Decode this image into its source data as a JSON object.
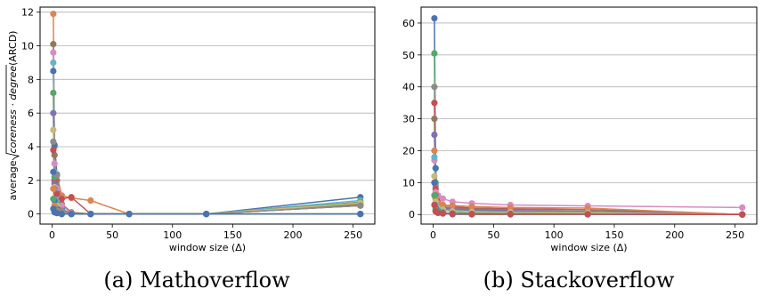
{
  "captions": {
    "left": "(a) Mathoverflow",
    "right": "(b) Stackoverflow"
  },
  "chart_data": [
    {
      "type": "line",
      "title": "",
      "xlabel": "window size (Δ)",
      "ylabel_prefix": "average ",
      "ylabel_radicand": "coreness · degree",
      "ylabel_suffix": " (ARCD)",
      "xlim": [
        -10,
        268
      ],
      "ylim": [
        -0.6,
        12.3
      ],
      "xticks": [
        0,
        50,
        100,
        150,
        200,
        250
      ],
      "yticks": [
        0,
        2,
        4,
        6,
        8,
        10,
        12
      ],
      "grid": "horizontal",
      "x": [
        1,
        2,
        4,
        8,
        16,
        32,
        64,
        128,
        256
      ],
      "series": [
        {
          "color": "#dd8452",
          "values": [
            11.9,
            4.0,
            2.3,
            1.1,
            0.95,
            0.8,
            0.0,
            0.0,
            0.55
          ]
        },
        {
          "color": "#4c72b0",
          "values": [
            8.5,
            4.1,
            2.35,
            0.3,
            0.0,
            0.0,
            0.0,
            0.0,
            1.0
          ]
        },
        {
          "color": "#937860",
          "values": [
            10.1,
            3.5,
            2.0,
            0.6,
            0.1,
            0.0,
            0.0,
            0.0,
            0.6
          ]
        },
        {
          "color": "#da8bc3",
          "values": [
            9.6,
            3.0,
            1.5,
            0.5,
            0.05,
            0.0,
            0.0,
            0.0,
            0.7
          ]
        },
        {
          "color": "#64b5cd",
          "values": [
            9.0,
            2.5,
            1.0,
            0.2,
            0.0,
            0.0,
            0.0,
            0.0,
            0.8
          ]
        },
        {
          "color": "#c44e52",
          "values": [
            3.8,
            2.0,
            1.2,
            0.9,
            1.0,
            0.0,
            0.0,
            0.0,
            0.5
          ]
        },
        {
          "color": "#55a868",
          "values": [
            7.2,
            2.2,
            0.6,
            0.1,
            0.0,
            0.0,
            0.0,
            0.0,
            0.7
          ]
        },
        {
          "color": "#8172b3",
          "values": [
            6.0,
            1.8,
            0.4,
            0.05,
            0.0,
            0.0,
            0.0,
            0.0,
            0.5
          ]
        },
        {
          "color": "#ccb974",
          "values": [
            5.0,
            1.6,
            0.5,
            0.1,
            0.0,
            0.0,
            0.0,
            0.0,
            0.65
          ]
        },
        {
          "color": "#8c8c8c",
          "values": [
            4.3,
            1.5,
            2.3,
            0.2,
            0.0,
            0.0,
            0.0,
            0.0,
            0.5
          ]
        },
        {
          "color": "#4c72b0",
          "values": [
            2.5,
            0.8,
            0.3,
            0.0,
            0.0,
            0.0,
            0.0,
            0.0,
            0.0
          ]
        },
        {
          "color": "#dd8452",
          "values": [
            1.5,
            0.5,
            0.2,
            0.0,
            0.0,
            0.0,
            0.0,
            0.0,
            0.0
          ]
        },
        {
          "color": "#55a868",
          "values": [
            0.9,
            0.3,
            0.1,
            0.0,
            0.0,
            0.0,
            0.0,
            0.0,
            0.0
          ]
        },
        {
          "color": "#4c72b0",
          "values": [
            0.3,
            0.1,
            0.05,
            0.0,
            0.0,
            0.0,
            0.0,
            0.0,
            0.0
          ]
        }
      ]
    },
    {
      "type": "line",
      "title": "",
      "xlabel": "window size (Δ)",
      "ylabel": "",
      "xlim": [
        -10,
        268
      ],
      "ylim": [
        -3,
        65
      ],
      "xticks": [
        0,
        50,
        100,
        150,
        200,
        250
      ],
      "yticks": [
        0,
        10,
        20,
        30,
        40,
        50,
        60
      ],
      "grid": "horizontal",
      "x": [
        1,
        2,
        4,
        8,
        16,
        32,
        64,
        128,
        256
      ],
      "series": [
        {
          "color": "#4c72b0",
          "values": [
            61.5,
            14.5,
            5.0,
            2.0,
            1.0,
            0.8,
            0.6,
            0.5,
            0.0
          ]
        },
        {
          "color": "#55a868",
          "values": [
            50.5,
            10.0,
            4.0,
            1.5,
            0.8,
            0.6,
            0.5,
            0.4,
            0.0
          ]
        },
        {
          "color": "#8c8c8c",
          "values": [
            40.0,
            9.0,
            3.5,
            2.0,
            1.5,
            1.2,
            1.0,
            0.8,
            0.0
          ]
        },
        {
          "color": "#c44e52",
          "values": [
            35.0,
            8.0,
            4.5,
            3.0,
            2.5,
            2.0,
            1.8,
            1.5,
            0.0
          ]
        },
        {
          "color": "#da8bc3",
          "values": [
            17.0,
            7.0,
            6.0,
            5.0,
            4.0,
            3.5,
            3.0,
            2.7,
            2.2
          ]
        },
        {
          "color": "#937860",
          "values": [
            30.0,
            6.0,
            3.0,
            2.5,
            2.0,
            1.8,
            1.6,
            1.5,
            0.0
          ]
        },
        {
          "color": "#8172b3",
          "values": [
            25.0,
            5.0,
            3.0,
            2.0,
            1.8,
            1.5,
            1.2,
            1.0,
            0.0
          ]
        },
        {
          "color": "#dd8452",
          "values": [
            20.0,
            5.0,
            3.5,
            3.0,
            2.8,
            2.5,
            2.2,
            2.0,
            0.0
          ]
        },
        {
          "color": "#ccb974",
          "values": [
            12.0,
            4.0,
            2.0,
            1.5,
            1.0,
            0.8,
            0.7,
            0.6,
            0.0
          ]
        },
        {
          "color": "#64b5cd",
          "values": [
            18.0,
            3.0,
            1.5,
            0.8,
            0.0,
            0.0,
            0.0,
            0.0,
            0.0
          ]
        },
        {
          "color": "#4c72b0",
          "values": [
            10.0,
            2.0,
            1.0,
            0.5,
            0.3,
            0.2,
            0.2,
            0.1,
            0.0
          ]
        },
        {
          "color": "#55a868",
          "values": [
            6.0,
            1.5,
            0.8,
            0.4,
            0.2,
            0.1,
            0.1,
            0.1,
            0.0
          ]
        },
        {
          "color": "#c44e52",
          "values": [
            3.0,
            1.0,
            0.5,
            0.3,
            0.2,
            0.1,
            0.1,
            0.1,
            0.0
          ]
        }
      ]
    }
  ]
}
